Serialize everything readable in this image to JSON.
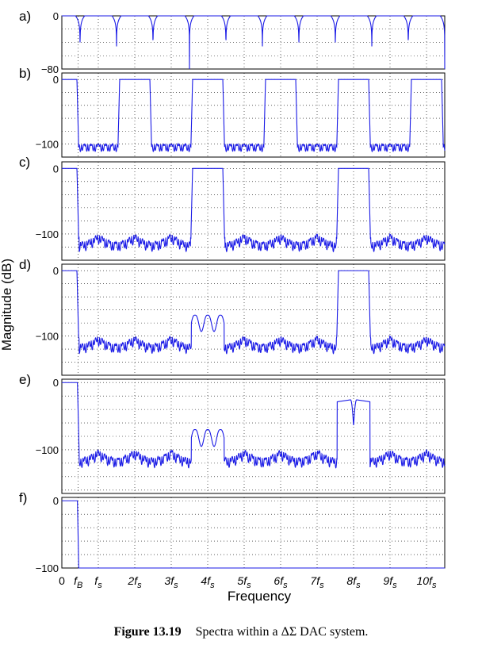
{
  "figure": {
    "caption_label": "Figure 13.19",
    "caption_text": "Spectra within a ΔΣ DAC system."
  },
  "chart_data": {
    "type": "line",
    "xlabel": "Frequency",
    "ylabel": "Magnitude (dB)",
    "x_unit": "f_s",
    "xlim": [
      0,
      10.5
    ],
    "fB": 0.45,
    "x_ticks": [
      {
        "value": 0,
        "text": "0",
        "sub": ""
      },
      {
        "value": 0.45,
        "text": "f",
        "sub": "B"
      },
      {
        "value": 1,
        "text": "f",
        "sub": "s"
      },
      {
        "value": 2,
        "text": "2f",
        "sub": "s"
      },
      {
        "value": 3,
        "text": "3f",
        "sub": "s"
      },
      {
        "value": 4,
        "text": "4f",
        "sub": "s"
      },
      {
        "value": 5,
        "text": "5f",
        "sub": "s"
      },
      {
        "value": 6,
        "text": "6f",
        "sub": "s"
      },
      {
        "value": 7,
        "text": "7f",
        "sub": "s"
      },
      {
        "value": 8,
        "text": "8f",
        "sub": "s"
      },
      {
        "value": 9,
        "text": "9f",
        "sub": "s"
      },
      {
        "value": 10,
        "text": "10f",
        "sub": "s"
      }
    ],
    "panels": [
      {
        "label": "a)",
        "ylim": [
          -80,
          0
        ],
        "ytick_labels": [
          {
            "value": 0,
            "text": "0"
          },
          {
            "value": -80,
            "text": "−80"
          }
        ],
        "passband_centers": [],
        "curve": {
          "kind": "sinc_notches",
          "notch_spacing": 1,
          "first_notch": 0.5,
          "floor": -80
        }
      },
      {
        "label": "b)",
        "ylim": [
          -120,
          10
        ],
        "ytick_labels": [
          {
            "value": 0,
            "text": "0"
          },
          {
            "value": -100,
            "text": "−100"
          }
        ],
        "passband_centers": [
          0,
          2,
          4,
          6,
          8,
          10
        ],
        "passband_level": 0,
        "stopband_level": -100,
        "curve": {
          "kind": "periodic_lowpass",
          "period": 2
        }
      },
      {
        "label": "c)",
        "ylim": [
          -140,
          10
        ],
        "ytick_labels": [
          {
            "value": 0,
            "text": "0"
          },
          {
            "value": -100,
            "text": "−100"
          }
        ],
        "passband_centers": [
          0,
          4,
          8
        ],
        "passband_level": 0,
        "stopband_level": -100,
        "curve": {
          "kind": "periodic_lowpass",
          "period": 4
        }
      },
      {
        "label": "d)",
        "ylim": [
          -160,
          10
        ],
        "ytick_labels": [
          {
            "value": 0,
            "text": "0"
          },
          {
            "value": -100,
            "text": "−100"
          }
        ],
        "passband_centers": [
          0,
          8
        ],
        "passband_level": 0,
        "images": [
          {
            "center": 4,
            "level": -68
          }
        ],
        "stopband_level": -100,
        "curve": {
          "kind": "periodic_lowpass",
          "period": 8
        }
      },
      {
        "label": "e)",
        "ylim": [
          -165,
          5
        ],
        "ytick_labels": [
          {
            "value": 0,
            "text": "0"
          },
          {
            "value": -100,
            "text": "−100"
          }
        ],
        "passband_centers": [
          0
        ],
        "passband_level": 0,
        "images": [
          {
            "center": 4,
            "level": -70
          },
          {
            "center": 8,
            "level": -25
          }
        ],
        "stopband_level": -100,
        "curve": {
          "kind": "zoh_shaped"
        }
      },
      {
        "label": "f)",
        "ylim": [
          -100,
          5
        ],
        "ytick_labels": [
          {
            "value": 0,
            "text": "0"
          },
          {
            "value": -100,
            "text": "−100"
          }
        ],
        "passband_centers": [
          0
        ],
        "passband_level": 0,
        "curve": {
          "kind": "analog_lowpass"
        }
      }
    ],
    "grid": true,
    "line_color": "#1a1ae6"
  }
}
